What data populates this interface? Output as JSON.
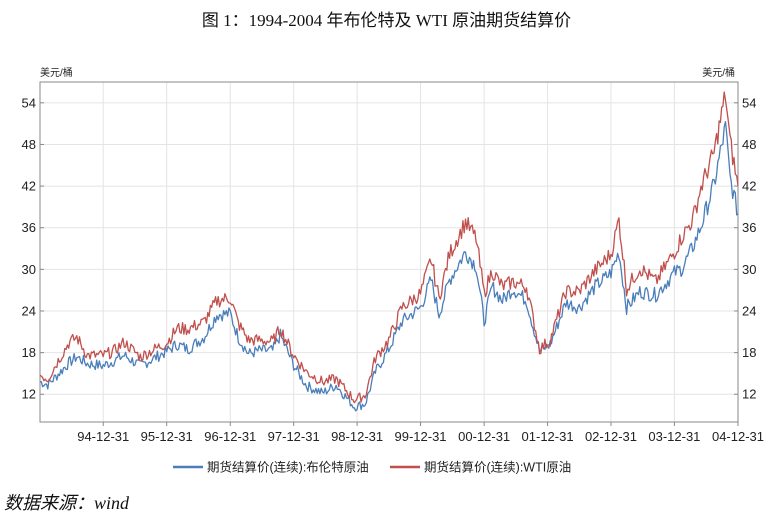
{
  "figure_title": "图 1：1994-2004 年布伦特及 WTI 原油期货结算价",
  "source": "数据来源：wind",
  "chart_data": {
    "type": "line",
    "ylabel_left": "美元/桶",
    "ylabel_right": "美元/桶",
    "ylim": [
      8,
      57
    ],
    "yticks": [
      "12",
      "18",
      "24",
      "30",
      "36",
      "42",
      "48",
      "54"
    ],
    "xlim": [
      "1994-01-01",
      "2004-12-31"
    ],
    "xticks": [
      "94-12-31",
      "95-12-31",
      "96-12-31",
      "97-12-31",
      "98-12-31",
      "99-12-31",
      "00-12-31",
      "01-12-31",
      "02-12-31",
      "03-12-31",
      "04-12-31"
    ],
    "grid": true,
    "legend_position": "bottom",
    "series": [
      {
        "name": "期货结算价(连续):布伦特原油",
        "color": "#4a7ebb",
        "points": [
          [
            "1994-01-01",
            13.8
          ],
          [
            "1994-02-15",
            13.4
          ],
          [
            "1994-04-01",
            14.5
          ],
          [
            "1994-06-15",
            16.5
          ],
          [
            "1994-08-01",
            17.4
          ],
          [
            "1994-10-01",
            16.4
          ],
          [
            "1994-12-31",
            16.1
          ],
          [
            "1995-03-01",
            16.8
          ],
          [
            "1995-05-01",
            17.6
          ],
          [
            "1995-08-01",
            16.1
          ],
          [
            "1995-12-31",
            18.2
          ],
          [
            "1996-03-01",
            19.2
          ],
          [
            "1996-05-01",
            18.5
          ],
          [
            "1996-08-01",
            20.2
          ],
          [
            "1996-10-15",
            23.5
          ],
          [
            "1996-12-31",
            23.6
          ],
          [
            "1997-02-15",
            20.2
          ],
          [
            "1997-04-15",
            17.8
          ],
          [
            "1997-06-15",
            18.3
          ],
          [
            "1997-09-01",
            18.3
          ],
          [
            "1997-10-15",
            20.5
          ],
          [
            "1997-12-31",
            16.2
          ],
          [
            "1998-03-15",
            13.2
          ],
          [
            "1998-06-15",
            12.2
          ],
          [
            "1998-09-01",
            13.3
          ],
          [
            "1998-12-15",
            10.2
          ],
          [
            "1999-02-15",
            10.6
          ],
          [
            "1999-04-15",
            15.2
          ],
          [
            "1999-07-01",
            18.5
          ],
          [
            "1999-09-15",
            22.5
          ],
          [
            "1999-12-31",
            24.5
          ],
          [
            "2000-03-01",
            28.5
          ],
          [
            "2000-04-15",
            23.5
          ],
          [
            "2000-06-15",
            28.5
          ],
          [
            "2000-09-15",
            32.5
          ],
          [
            "2000-11-15",
            30.5
          ],
          [
            "2000-12-31",
            22.5
          ],
          [
            "2001-02-15",
            27.5
          ],
          [
            "2001-04-15",
            25.5
          ],
          [
            "2001-06-15",
            27.2
          ],
          [
            "2001-09-01",
            25.5
          ],
          [
            "2001-11-15",
            18.2
          ],
          [
            "2002-01-15",
            19.2
          ],
          [
            "2002-04-15",
            25.2
          ],
          [
            "2002-07-01",
            24.5
          ],
          [
            "2002-10-01",
            27.5
          ],
          [
            "2002-12-31",
            29.5
          ],
          [
            "2003-02-15",
            32.5
          ],
          [
            "2003-03-31",
            24.5
          ],
          [
            "2003-06-15",
            26.8
          ],
          [
            "2003-09-15",
            26.3
          ],
          [
            "2003-12-31",
            29.5
          ],
          [
            "2004-02-15",
            30.2
          ],
          [
            "2004-04-15",
            33.2
          ],
          [
            "2004-06-01",
            36.2
          ],
          [
            "2004-08-15",
            42.2
          ],
          [
            "2004-10-20",
            50.5
          ],
          [
            "2004-11-15",
            43.2
          ],
          [
            "2004-12-31",
            38.0
          ]
        ]
      },
      {
        "name": "期货结算价(连续):WTI原油",
        "color": "#c0504d",
        "points": [
          [
            "1994-01-01",
            14.8
          ],
          [
            "1994-02-15",
            14.2
          ],
          [
            "1994-04-01",
            16.2
          ],
          [
            "1994-06-15",
            19.4
          ],
          [
            "1994-08-01",
            20.2
          ],
          [
            "1994-10-01",
            17.6
          ],
          [
            "1994-12-31",
            17.6
          ],
          [
            "1995-03-01",
            18.2
          ],
          [
            "1995-05-01",
            19.5
          ],
          [
            "1995-08-01",
            17.4
          ],
          [
            "1995-12-31",
            19.4
          ],
          [
            "1996-03-01",
            21.5
          ],
          [
            "1996-05-01",
            21.4
          ],
          [
            "1996-08-01",
            22.4
          ],
          [
            "1996-10-15",
            25.5
          ],
          [
            "1996-12-31",
            25.9
          ],
          [
            "1997-02-15",
            22.2
          ],
          [
            "1997-04-15",
            19.8
          ],
          [
            "1997-06-15",
            19.8
          ],
          [
            "1997-09-01",
            19.6
          ],
          [
            "1997-10-15",
            21.5
          ],
          [
            "1997-12-31",
            17.6
          ],
          [
            "1998-03-15",
            15.2
          ],
          [
            "1998-06-15",
            13.8
          ],
          [
            "1998-09-01",
            14.2
          ],
          [
            "1998-12-15",
            11.2
          ],
          [
            "1999-02-15",
            11.8
          ],
          [
            "1999-04-15",
            17.2
          ],
          [
            "1999-07-01",
            19.8
          ],
          [
            "1999-09-15",
            24.5
          ],
          [
            "1999-12-31",
            26.5
          ],
          [
            "2000-03-01",
            31.5
          ],
          [
            "2000-04-15",
            25.8
          ],
          [
            "2000-06-15",
            32.2
          ],
          [
            "2000-09-15",
            36.8
          ],
          [
            "2000-11-15",
            34.5
          ],
          [
            "2000-12-31",
            26.5
          ],
          [
            "2001-02-15",
            29.8
          ],
          [
            "2001-04-15",
            27.5
          ],
          [
            "2001-06-15",
            28.2
          ],
          [
            "2001-09-01",
            27.5
          ],
          [
            "2001-11-15",
            18.5
          ],
          [
            "2002-01-15",
            19.8
          ],
          [
            "2002-04-15",
            26.8
          ],
          [
            "2002-07-01",
            26.8
          ],
          [
            "2002-10-01",
            29.8
          ],
          [
            "2002-12-31",
            32.2
          ],
          [
            "2003-02-15",
            37.2
          ],
          [
            "2003-03-31",
            27.2
          ],
          [
            "2003-06-15",
            30.2
          ],
          [
            "2003-09-15",
            28.2
          ],
          [
            "2003-12-31",
            32.5
          ],
          [
            "2004-02-15",
            34.8
          ],
          [
            "2004-04-15",
            37.2
          ],
          [
            "2004-06-01",
            41.8
          ],
          [
            "2004-08-15",
            46.8
          ],
          [
            "2004-10-20",
            55.2
          ],
          [
            "2004-11-15",
            48.5
          ],
          [
            "2004-12-31",
            42.0
          ]
        ]
      }
    ]
  }
}
